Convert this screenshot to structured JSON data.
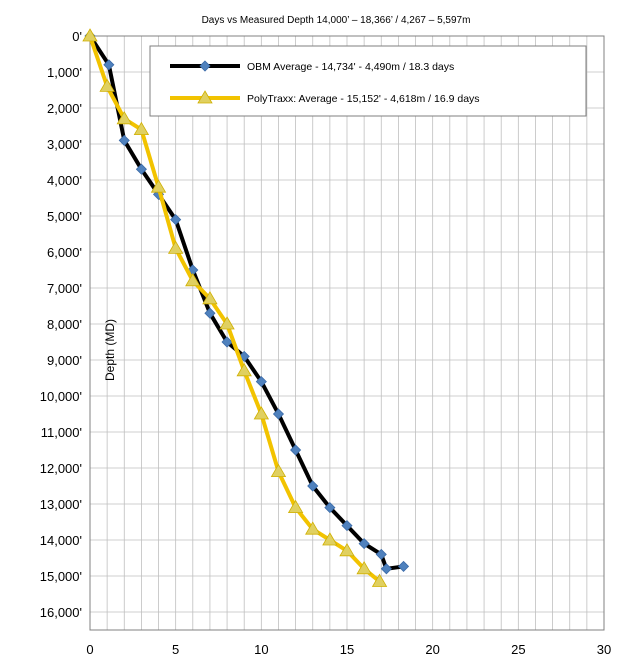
{
  "chart_data": {
    "type": "line",
    "title": "Days vs Measured  Depth 14,000’ – 18,366’ / 4,267 – 5,597m",
    "xlabel": "",
    "ylabel": "Depth (MD)",
    "xlim": [
      0,
      30
    ],
    "ylim": [
      0,
      16500
    ],
    "y_inverted": true,
    "grid": true,
    "legend_position": "top-right",
    "x_ticks": [
      0,
      5,
      10,
      15,
      20,
      25,
      30
    ],
    "x_tick_labels": [
      "0",
      "5",
      "10",
      "15",
      "20",
      "25",
      "30"
    ],
    "y_ticks": [
      0,
      1000,
      2000,
      3000,
      4000,
      5000,
      6000,
      7000,
      8000,
      9000,
      10000,
      11000,
      12000,
      13000,
      14000,
      15000,
      16000
    ],
    "y_tick_labels": [
      "0'",
      "1,000'",
      "2,000'",
      "3,000'",
      "4,000'",
      "5,000'",
      "6,000'",
      "7,000'",
      "8,000'",
      "9,000'",
      "10,000'",
      "11,000'",
      "12,000'",
      "13,000'",
      "14,000'",
      "15,000'",
      "16,000'"
    ],
    "series": [
      {
        "name": "OBM Average - 14,734' - 4,490m / 18.3 days",
        "color": "#000000",
        "marker": "diamond",
        "marker_color": "#4f81bd",
        "x": [
          0,
          1.1,
          2,
          3,
          4,
          5,
          6,
          7,
          8,
          9,
          10,
          11,
          12,
          13,
          14,
          15,
          16,
          17,
          17.3,
          18.3
        ],
        "y": [
          0,
          800,
          2900,
          3700,
          4400,
          5100,
          6500,
          7700,
          8500,
          8900,
          9600,
          10500,
          11500,
          12500,
          13100,
          13600,
          14100,
          14400,
          14800,
          14734
        ]
      },
      {
        "name": "PolyTraxx: Average - 15,152' - 4,618m / 16.9 days",
        "color": "#f2c300",
        "marker": "triangle",
        "marker_color": "#e0d060",
        "x": [
          0,
          1,
          2,
          3,
          4,
          5,
          6,
          7,
          8,
          9,
          10,
          11,
          12,
          13,
          14,
          15,
          16,
          16.9
        ],
        "y": [
          0,
          1400,
          2300,
          2600,
          4200,
          5900,
          6800,
          7300,
          8000,
          9300,
          10500,
          12100,
          13100,
          13700,
          14000,
          14300,
          14800,
          15152
        ]
      }
    ]
  }
}
